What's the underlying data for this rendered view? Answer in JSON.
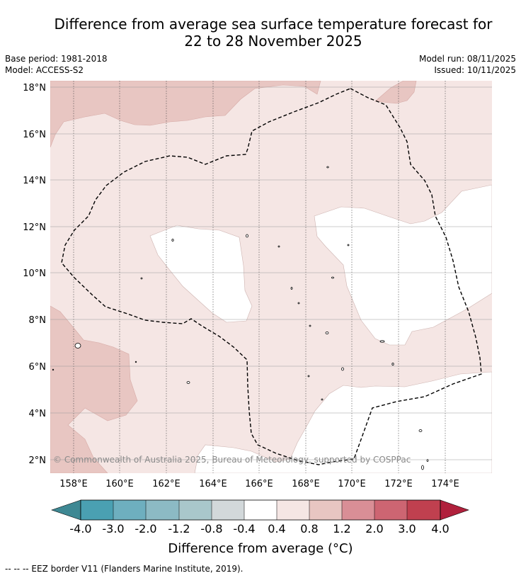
{
  "title": {
    "line1": "Difference from average sea surface temperature forecast for",
    "line2": "22 to 28 November 2025"
  },
  "meta_left": {
    "base_period": "Base period: 1981-2018",
    "model": "Model: ACCESS-S2"
  },
  "meta_right": {
    "model_run": "Model run: 08/11/2025",
    "issued": "Issued: 10/11/2025"
  },
  "map": {
    "lat_labels": [
      "18°N",
      "16°N",
      "14°N",
      "12°N",
      "10°N",
      "8°N",
      "6°N",
      "4°N",
      "2°N"
    ],
    "lon_labels": [
      "158°E",
      "160°E",
      "162°E",
      "164°E",
      "166°E",
      "168°E",
      "170°E",
      "172°E",
      "174°E"
    ],
    "copyright": "© Commonwealth of Australia 2025, Bureau of Meteorology, supported by COSPPac",
    "fill_colors": {
      "class_0.8_1.2": "#e8c6c2",
      "class_0.4_0.8": "#f5e6e4",
      "class_-0.4_0.4": "#ffffff"
    }
  },
  "colorbar": {
    "tick_labels": [
      "-4.0",
      "-3.0",
      "-2.0",
      "-1.2",
      "-0.8",
      "-0.4",
      "0.4",
      "0.8",
      "1.2",
      "2.0",
      "3.0",
      "4.0"
    ],
    "colors": [
      "#4aa0b2",
      "#6eafbf",
      "#8cbac4",
      "#a9c7cb",
      "#d2d8da",
      "#ffffff",
      "#f5e6e4",
      "#e8c6c2",
      "#d98e96",
      "#cd6572",
      "#c0404f"
    ],
    "low_extend_color": "#3e8893",
    "high_extend_color": "#b0203c",
    "label": "Difference from average (°C)"
  },
  "footnote": "--  --  -- EEZ border V11 (Flanders Marine Institute, 2019)."
}
